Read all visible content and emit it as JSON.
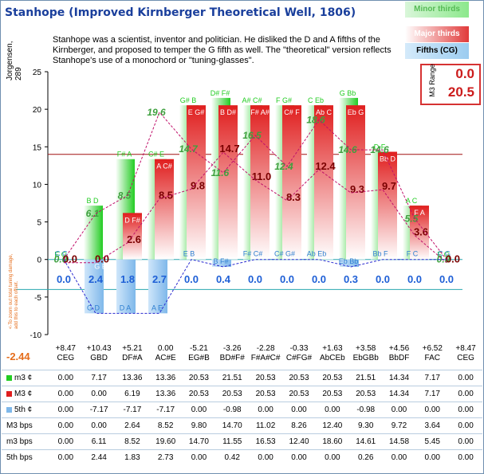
{
  "title": "Stanhope (Improved Kirnberger Theoretical Well, 1806)",
  "description": "Stanhope was a scientist, inventor and politician. He disliked the D and A fifths of the Kirnberger, and proposed to temper the G fifth as well. The \"theoretical\" version reflects Stanhope's use of a monochord or \"tuning-glasses\".",
  "y_axis_title": "Jorgensen, 289",
  "legend": {
    "minor": "Minor thirds",
    "major": "Major thirds",
    "fifths": "Fifths (CG)"
  },
  "range": {
    "label": "M3 Range",
    "min": "0.0",
    "max": "20.5"
  },
  "side_note": "<-To zoom out total tuning damage, add this to each offset.",
  "total": "-2.44",
  "colors": {
    "minor": "#22cc22",
    "major": "#e01e1e",
    "fifths": "#7fb8ea",
    "title": "#1a3f9c",
    "accent": "#e56d1b"
  },
  "chart_data": {
    "type": "bar",
    "ylim": [
      -10,
      25
    ],
    "yticks": [
      -10,
      -5,
      0,
      5,
      10,
      15,
      20,
      25
    ],
    "reference_line": 14,
    "columns": [
      {
        "offset": "+8.47",
        "name": "CEG",
        "m3": 0.0,
        "M3": 0.0,
        "p5": 0.0,
        "M3bps": 0.0,
        "m3bps": 0.0,
        "p5bps": 0.0,
        "lab_m3": "E G",
        "lab_M3": "C E",
        "lab_p5": "C G"
      },
      {
        "offset": "+10.43",
        "name": "GBD",
        "m3": 7.17,
        "M3": 0.0,
        "p5": -7.17,
        "M3bps": 0.0,
        "m3bps": 6.11,
        "p5bps": 2.44,
        "lab_m3": "B D",
        "lab_M3": "G B",
        "lab_p5": "G D"
      },
      {
        "offset": "+5.21",
        "name": "DF#A",
        "m3": 13.36,
        "M3": 6.19,
        "p5": -7.17,
        "M3bps": 2.64,
        "m3bps": 8.52,
        "p5bps": 1.83,
        "lab_m3": "F# A",
        "lab_M3": "D F#",
        "lab_p5": "D A"
      },
      {
        "offset": "0.00",
        "name": "AC#E",
        "m3": 13.36,
        "M3": 13.36,
        "p5": -7.17,
        "M3bps": 8.52,
        "m3bps": 19.6,
        "p5bps": 2.73,
        "lab_m3": "C# E",
        "lab_M3": "A C#",
        "lab_p5": "A E"
      },
      {
        "offset": "-5.21",
        "name": "EG#B",
        "m3": 20.53,
        "M3": 20.53,
        "p5": 0.0,
        "M3bps": 9.8,
        "m3bps": 14.7,
        "p5bps": 0.0,
        "lab_m3": "G# B",
        "lab_M3": "E G#",
        "lab_p5": "E B"
      },
      {
        "offset": "-3.26",
        "name": "BD#F#",
        "m3": 21.51,
        "M3": 20.53,
        "p5": -0.98,
        "M3bps": 14.7,
        "m3bps": 11.55,
        "p5bps": 0.42,
        "lab_m3": "D# F#",
        "lab_M3": "B D#",
        "lab_p5": "B F#"
      },
      {
        "offset": "-2.28",
        "name": "F#A#C#",
        "m3": 20.53,
        "M3": 20.53,
        "p5": 0.0,
        "M3bps": 11.02,
        "m3bps": 16.53,
        "p5bps": 0.0,
        "lab_m3": "A# C#",
        "lab_M3": "F# A#",
        "lab_p5": "F# C#"
      },
      {
        "offset": "-0.33",
        "name": "C#FG#",
        "m3": 20.53,
        "M3": 20.53,
        "p5": 0.0,
        "M3bps": 8.26,
        "m3bps": 12.4,
        "p5bps": 0.0,
        "lab_m3": "F G#",
        "lab_M3": "C# F",
        "lab_p5": "C# G#"
      },
      {
        "offset": "+1.63",
        "name": "AbCEb",
        "m3": 20.53,
        "M3": 20.53,
        "p5": 0.0,
        "M3bps": 12.4,
        "m3bps": 18.6,
        "p5bps": 0.0,
        "lab_m3": "C Eb",
        "lab_M3": "Ab C",
        "lab_p5": "Ab Eb"
      },
      {
        "offset": "+3.58",
        "name": "EbGBb",
        "m3": 21.51,
        "M3": 20.53,
        "p5": -0.98,
        "M3bps": 9.3,
        "m3bps": 14.61,
        "p5bps": 0.26,
        "lab_m3": "G Bb",
        "lab_M3": "Eb G",
        "lab_p5": "Eb Bb"
      },
      {
        "offset": "+4.56",
        "name": "BbDF",
        "m3": 14.34,
        "M3": 14.34,
        "p5": 0.0,
        "M3bps": 9.72,
        "m3bps": 14.58,
        "p5bps": 0.0,
        "lab_m3": "D F",
        "lab_M3": "Bb D",
        "lab_p5": "Bb F"
      },
      {
        "offset": "+6.52",
        "name": "FAC",
        "m3": 7.17,
        "M3": 7.17,
        "p5": 0.0,
        "M3bps": 3.64,
        "m3bps": 5.45,
        "p5bps": 0.0,
        "lab_m3": "A C",
        "lab_M3": "F A",
        "lab_p5": "F C"
      },
      {
        "offset": "+8.47",
        "name": "CEG",
        "m3": 0.0,
        "M3": 0.0,
        "p5": 0.0,
        "M3bps": 0.0,
        "m3bps": 0.0,
        "p5bps": 0.0,
        "lab_m3": "E G",
        "lab_M3": "C E",
        "lab_p5": "C G"
      }
    ]
  },
  "table": {
    "row_labels": {
      "m3": "m3 ¢",
      "M3": "M3 ¢",
      "p5": "5th ¢",
      "M3bps": "M3 bps",
      "m3bps": "m3 bps",
      "p5bps": "5th bps"
    },
    "rows": {
      "m3": [
        "0.00",
        "7.17",
        "13.36",
        "13.36",
        "20.53",
        "21.51",
        "20.53",
        "20.53",
        "20.53",
        "21.51",
        "14.34",
        "7.17",
        "0.00"
      ],
      "M3": [
        "0.00",
        "0.00",
        "6.19",
        "13.36",
        "20.53",
        "20.53",
        "20.53",
        "20.53",
        "20.53",
        "20.53",
        "14.34",
        "7.17",
        "0.00"
      ],
      "p5": [
        "0.00",
        "-7.17",
        "-7.17",
        "-7.17",
        "0.00",
        "-0.98",
        "0.00",
        "0.00",
        "0.00",
        "-0.98",
        "0.00",
        "0.00",
        "0.00"
      ],
      "M3bps": [
        "0.00",
        "0.00",
        "2.64",
        "8.52",
        "9.80",
        "14.70",
        "11.02",
        "8.26",
        "12.40",
        "9.30",
        "9.72",
        "3.64",
        "0.00"
      ],
      "m3bps": [
        "0.00",
        "6.11",
        "8.52",
        "19.60",
        "14.70",
        "11.55",
        "16.53",
        "12.40",
        "18.60",
        "14.61",
        "14.58",
        "5.45",
        "0.00"
      ],
      "p5bps": [
        "0.00",
        "2.44",
        "1.83",
        "2.73",
        "0.00",
        "0.42",
        "0.00",
        "0.00",
        "0.00",
        "0.26",
        "0.00",
        "0.00",
        "0.00"
      ]
    }
  }
}
